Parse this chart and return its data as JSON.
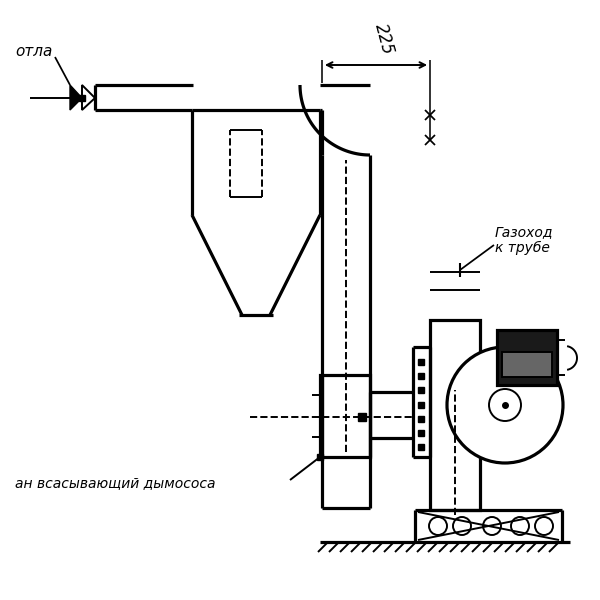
{
  "bg_color": "#ffffff",
  "lw": 1.4,
  "lwt": 2.3,
  "lc": "#000000",
  "fig_w": 6.0,
  "fig_h": 6.0,
  "dpi": 100,
  "label_kotla": "отла",
  "label_gazokhod": "Газоход\nк трубе",
  "label_dymosos": "ан всасывающий дымососа",
  "dim_225": "225"
}
